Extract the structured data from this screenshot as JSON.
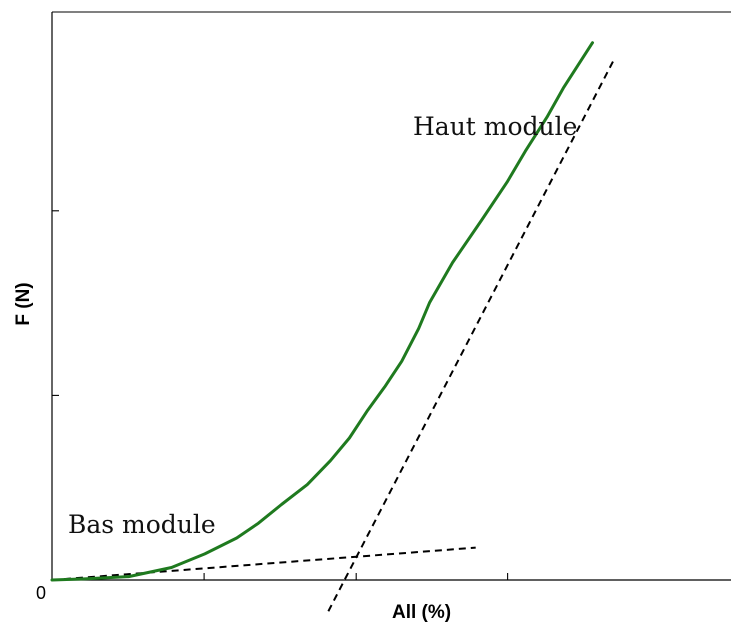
{
  "chart_data": {
    "type": "line",
    "xlabel": "All (%)",
    "ylabel": "F (N)",
    "origin_label": "0",
    "xlim": [
      0,
      100
    ],
    "ylim": [
      0,
      100
    ],
    "x_ticks": [
      22.4,
      44.8,
      67.1
    ],
    "y_ticks": [
      32.5,
      65
    ],
    "grid": false,
    "colors": {
      "curve": "#1f7a1f",
      "tangent": "#000000",
      "axis": "#000000"
    },
    "series": [
      {
        "style": "solid",
        "x": [
          0,
          4.8,
          11.3,
          17.6,
          22.5,
          27.2,
          30.4,
          33.8,
          37.6,
          41.0,
          43.8,
          46.5,
          49.0,
          51.5,
          54.0,
          55.6,
          59.0,
          63.3,
          67.1,
          69.7,
          72.9,
          75.3,
          79.6
        ],
        "values": [
          0.0,
          0.2,
          0.6,
          2.2,
          4.6,
          7.4,
          10.0,
          13.3,
          16.8,
          21.0,
          25.0,
          29.9,
          34.0,
          38.5,
          44.3,
          48.8,
          55.9,
          63.4,
          70.2,
          75.5,
          81.5,
          86.6,
          94.6
        ]
      }
    ],
    "tangents": [
      {
        "label": "Bas module",
        "x": [
          0,
          62.4
        ],
        "values": [
          0.0,
          5.7
        ]
      },
      {
        "label": "Haut module",
        "x": [
          40.7,
          82.8
        ],
        "values": [
          -5.5,
          91.7
        ]
      }
    ],
    "annotations": [
      {
        "text": "Bas module"
      },
      {
        "text": "Haut module"
      }
    ]
  }
}
